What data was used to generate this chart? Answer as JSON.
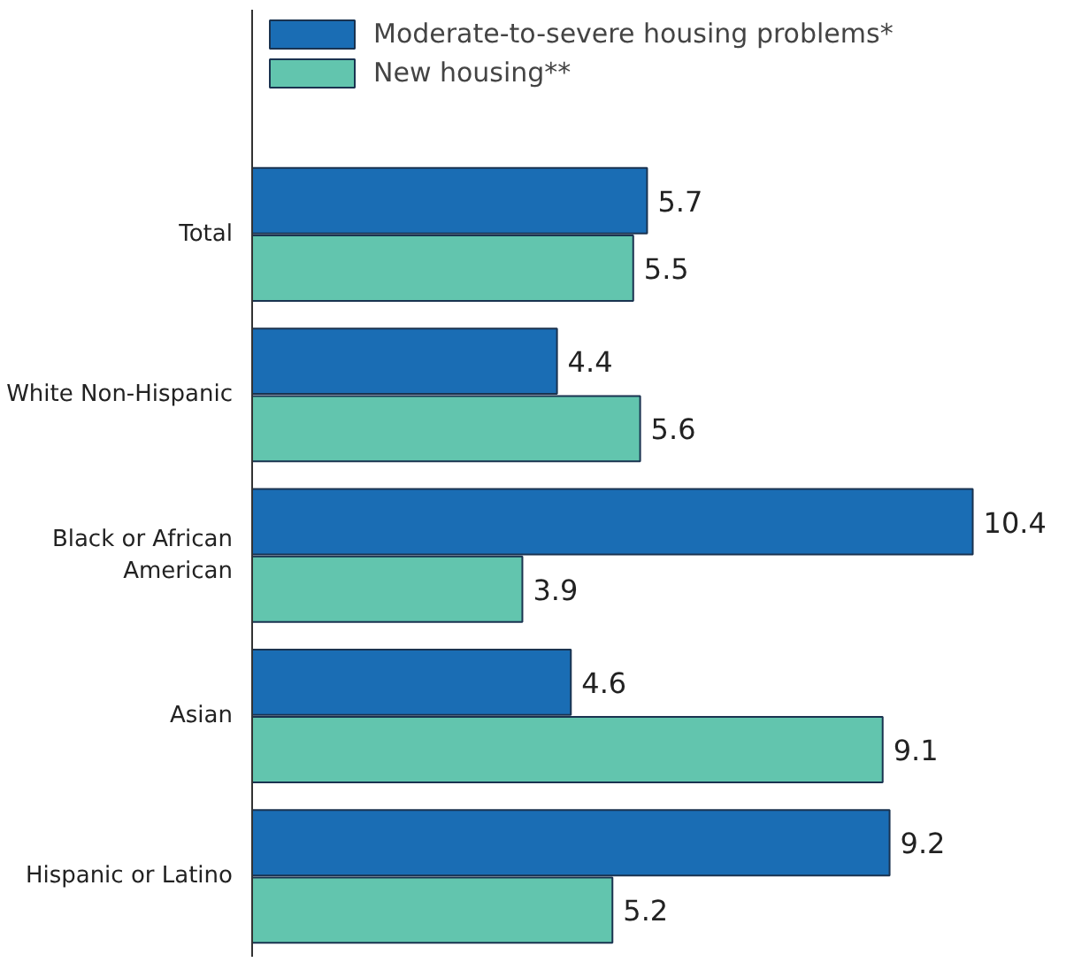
{
  "chart_data": {
    "type": "bar",
    "orientation": "horizontal",
    "categories": [
      "Total",
      "White Non-Hispanic",
      "Black or African American",
      "Asian",
      "Hispanic or Latino"
    ],
    "series": [
      {
        "name": "Moderate-to-severe housing problems*",
        "color": "#1a6db4",
        "values": [
          5.7,
          4.4,
          10.4,
          4.6,
          9.2
        ]
      },
      {
        "name": "New housing**",
        "color": "#62c5ae",
        "values": [
          5.5,
          5.6,
          3.9,
          9.1,
          5.2
        ]
      }
    ],
    "data_labels": true,
    "legend": "top",
    "grid": false
  }
}
